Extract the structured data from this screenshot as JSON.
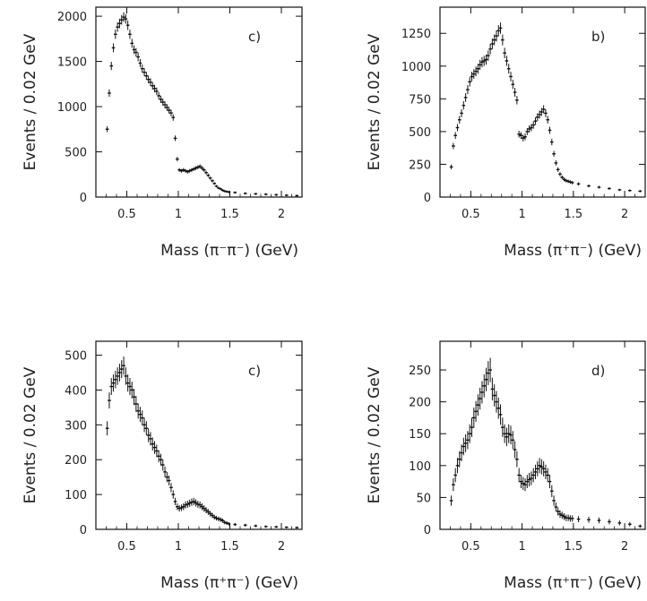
{
  "chart_data": [
    {
      "type": "scatter",
      "panel_label": "c)",
      "ylabel": "Events / 0.02 GeV",
      "xlabel": "Mass (π⁻π⁻) (GeV)",
      "xlim": [
        0.2,
        2.2
      ],
      "ylim": [
        0,
        2100
      ],
      "xticks": [
        0.5,
        1,
        1.5,
        2
      ],
      "xtick_labels": [
        "0.5",
        "1",
        "1.5",
        "2"
      ],
      "yticks": [
        0,
        500,
        1000,
        1500,
        2000
      ],
      "ytick_labels": [
        "0",
        "500",
        "1000",
        "1500",
        "2000"
      ],
      "x": [
        0.31,
        0.33,
        0.35,
        0.37,
        0.39,
        0.41,
        0.43,
        0.45,
        0.47,
        0.49,
        0.51,
        0.53,
        0.55,
        0.57,
        0.59,
        0.61,
        0.63,
        0.65,
        0.67,
        0.69,
        0.71,
        0.73,
        0.75,
        0.77,
        0.79,
        0.81,
        0.83,
        0.85,
        0.87,
        0.89,
        0.91,
        0.93,
        0.95,
        0.97,
        0.99,
        1.01,
        1.03,
        1.05,
        1.07,
        1.09,
        1.11,
        1.13,
        1.15,
        1.17,
        1.19,
        1.21,
        1.23,
        1.25,
        1.27,
        1.29,
        1.31,
        1.33,
        1.35,
        1.37,
        1.39,
        1.41,
        1.43,
        1.45,
        1.47,
        1.49,
        1.55,
        1.65,
        1.75,
        1.85,
        1.95,
        2.05,
        2.15
      ],
      "y": [
        750,
        1150,
        1450,
        1650,
        1800,
        1880,
        1920,
        1960,
        1990,
        1970,
        1900,
        1800,
        1700,
        1630,
        1600,
        1550,
        1480,
        1420,
        1380,
        1340,
        1300,
        1270,
        1230,
        1200,
        1170,
        1120,
        1080,
        1050,
        1020,
        990,
        960,
        930,
        880,
        650,
        420,
        300,
        290,
        300,
        290,
        280,
        290,
        300,
        310,
        320,
        330,
        340,
        320,
        300,
        270,
        240,
        210,
        180,
        150,
        120,
        100,
        90,
        75,
        65,
        60,
        55,
        50,
        40,
        35,
        30,
        25,
        20,
        15
      ]
    },
    {
      "type": "scatter",
      "panel_label": "b)",
      "ylabel": "Events / 0.02 GeV",
      "xlabel": "Mass (π⁺π⁻) (GeV)",
      "xlim": [
        0.2,
        2.2
      ],
      "ylim": [
        0,
        1450
      ],
      "xticks": [
        0.5,
        1,
        1.5,
        2
      ],
      "xtick_labels": [
        "0.5",
        "1",
        "1.5",
        "2"
      ],
      "yticks": [
        0,
        250,
        500,
        750,
        1000,
        1250
      ],
      "ytick_labels": [
        "0",
        "250",
        "500",
        "750",
        "1000",
        "1250"
      ],
      "x": [
        0.31,
        0.33,
        0.35,
        0.37,
        0.39,
        0.41,
        0.43,
        0.45,
        0.47,
        0.49,
        0.51,
        0.53,
        0.55,
        0.57,
        0.59,
        0.61,
        0.63,
        0.65,
        0.67,
        0.69,
        0.71,
        0.73,
        0.75,
        0.77,
        0.79,
        0.81,
        0.83,
        0.85,
        0.87,
        0.89,
        0.91,
        0.93,
        0.95,
        0.97,
        0.99,
        1.01,
        1.03,
        1.05,
        1.07,
        1.09,
        1.11,
        1.13,
        1.15,
        1.17,
        1.19,
        1.21,
        1.23,
        1.25,
        1.27,
        1.29,
        1.31,
        1.33,
        1.35,
        1.37,
        1.39,
        1.41,
        1.43,
        1.45,
        1.47,
        1.49,
        1.55,
        1.65,
        1.75,
        1.85,
        1.95,
        2.05,
        2.15
      ],
      "y": [
        230,
        390,
        470,
        530,
        590,
        640,
        700,
        760,
        820,
        880,
        920,
        940,
        960,
        980,
        1010,
        1030,
        1040,
        1050,
        1080,
        1130,
        1170,
        1200,
        1230,
        1270,
        1290,
        1200,
        1100,
        1040,
        980,
        920,
        860,
        800,
        740,
        480,
        470,
        450,
        460,
        500,
        520,
        530,
        550,
        580,
        610,
        630,
        650,
        670,
        640,
        590,
        510,
        420,
        330,
        260,
        210,
        175,
        150,
        135,
        125,
        120,
        115,
        110,
        100,
        85,
        75,
        65,
        55,
        50,
        45
      ]
    },
    {
      "type": "scatter",
      "panel_label": "c)",
      "ylabel": "Events / 0.02 GeV",
      "xlabel": "Mass (π⁺π⁻) (GeV)",
      "xlim": [
        0.2,
        2.2
      ],
      "ylim": [
        0,
        540
      ],
      "xticks": [
        0.5,
        1,
        1.5,
        2
      ],
      "xtick_labels": [
        "0.5",
        "1",
        "1.5",
        "2"
      ],
      "yticks": [
        0,
        100,
        200,
        300,
        400,
        500
      ],
      "ytick_labels": [
        "0",
        "100",
        "200",
        "300",
        "400",
        "500"
      ],
      "x": [
        0.31,
        0.33,
        0.35,
        0.37,
        0.39,
        0.41,
        0.43,
        0.45,
        0.47,
        0.49,
        0.51,
        0.53,
        0.55,
        0.57,
        0.59,
        0.61,
        0.63,
        0.65,
        0.67,
        0.69,
        0.71,
        0.73,
        0.75,
        0.77,
        0.79,
        0.81,
        0.83,
        0.85,
        0.87,
        0.89,
        0.91,
        0.93,
        0.95,
        0.97,
        0.99,
        1.01,
        1.03,
        1.05,
        1.07,
        1.09,
        1.11,
        1.13,
        1.15,
        1.17,
        1.19,
        1.21,
        1.23,
        1.25,
        1.27,
        1.29,
        1.31,
        1.33,
        1.35,
        1.37,
        1.39,
        1.41,
        1.43,
        1.45,
        1.47,
        1.49,
        1.55,
        1.65,
        1.75,
        1.85,
        1.95,
        2.05,
        2.15
      ],
      "y": [
        290,
        370,
        410,
        420,
        430,
        440,
        450,
        460,
        470,
        440,
        420,
        410,
        400,
        380,
        360,
        340,
        330,
        320,
        300,
        290,
        270,
        260,
        245,
        235,
        225,
        210,
        200,
        185,
        165,
        150,
        140,
        120,
        100,
        80,
        65,
        60,
        62,
        65,
        70,
        72,
        75,
        78,
        80,
        76,
        72,
        70,
        65,
        60,
        55,
        50,
        45,
        40,
        35,
        32,
        30,
        28,
        25,
        20,
        18,
        16,
        14,
        12,
        10,
        8,
        7,
        6,
        5
      ]
    },
    {
      "type": "scatter",
      "panel_label": "d)",
      "ylabel": "Events / 0.02 GeV",
      "xlabel": "Mass (π⁺π⁻) (GeV)",
      "xlim": [
        0.2,
        2.2
      ],
      "ylim": [
        0,
        295
      ],
      "xticks": [
        0.5,
        1,
        1.5,
        2
      ],
      "xtick_labels": [
        "0.5",
        "1",
        "1.5",
        "2"
      ],
      "yticks": [
        0,
        50,
        100,
        150,
        200,
        250
      ],
      "ytick_labels": [
        "0",
        "50",
        "100",
        "150",
        "200",
        "250"
      ],
      "x": [
        0.31,
        0.33,
        0.35,
        0.37,
        0.39,
        0.41,
        0.43,
        0.45,
        0.47,
        0.49,
        0.51,
        0.53,
        0.55,
        0.57,
        0.59,
        0.61,
        0.63,
        0.65,
        0.67,
        0.69,
        0.71,
        0.73,
        0.75,
        0.77,
        0.79,
        0.81,
        0.83,
        0.85,
        0.87,
        0.89,
        0.91,
        0.93,
        0.95,
        0.97,
        0.99,
        1.01,
        1.03,
        1.05,
        1.07,
        1.09,
        1.11,
        1.13,
        1.15,
        1.17,
        1.19,
        1.21,
        1.23,
        1.25,
        1.27,
        1.29,
        1.31,
        1.33,
        1.35,
        1.37,
        1.39,
        1.41,
        1.43,
        1.45,
        1.47,
        1.49,
        1.55,
        1.65,
        1.75,
        1.85,
        1.95,
        2.05,
        2.15
      ],
      "y": [
        45,
        70,
        85,
        100,
        110,
        120,
        130,
        135,
        140,
        150,
        160,
        175,
        185,
        195,
        205,
        215,
        225,
        235,
        245,
        250,
        220,
        210,
        200,
        190,
        180,
        160,
        150,
        145,
        150,
        148,
        140,
        125,
        110,
        85,
        75,
        72,
        70,
        75,
        78,
        80,
        85,
        90,
        95,
        100,
        98,
        95,
        90,
        85,
        75,
        60,
        45,
        35,
        28,
        24,
        22,
        20,
        18,
        18,
        17,
        17,
        16,
        15,
        14,
        12,
        10,
        8,
        5
      ]
    }
  ]
}
